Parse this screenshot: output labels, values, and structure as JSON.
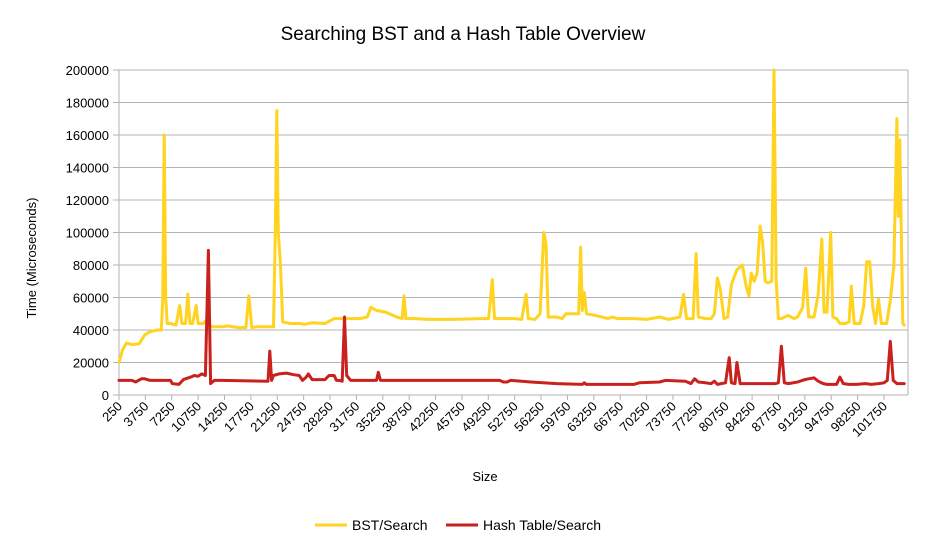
{
  "chart_data": {
    "type": "line",
    "title": "Searching BST and a Hash Table Overview",
    "xlabel": "Size",
    "ylabel": "Time (Microseconds)",
    "ylim": [
      0,
      200000
    ],
    "yticks": [
      0,
      20000,
      40000,
      60000,
      80000,
      100000,
      120000,
      140000,
      160000,
      180000,
      200000
    ],
    "xtick_labels": [
      "250",
      "3750",
      "7250",
      "10750",
      "14250",
      "17750",
      "21250",
      "24750",
      "28250",
      "31750",
      "35250",
      "38750",
      "42250",
      "45750",
      "49250",
      "52750",
      "56250",
      "59750",
      "63250",
      "66750",
      "70250",
      "73750",
      "77250",
      "80750",
      "84250",
      "87750",
      "91250",
      "94750",
      "98250",
      "101750"
    ],
    "xlim": [
      250,
      104250
    ],
    "grid": "horizontal",
    "legend_position": "bottom",
    "series": [
      {
        "name": "BST/Search",
        "color": "#FFD320",
        "points": [
          [
            250,
            20000
          ],
          [
            750,
            28000
          ],
          [
            1250,
            32000
          ],
          [
            2000,
            31000
          ],
          [
            3000,
            31500
          ],
          [
            3750,
            37000
          ],
          [
            4500,
            39000
          ],
          [
            5500,
            40000
          ],
          [
            6000,
            40000
          ],
          [
            6200,
            60000
          ],
          [
            6400,
            160000
          ],
          [
            6600,
            60000
          ],
          [
            6800,
            44000
          ],
          [
            7250,
            44000
          ],
          [
            8000,
            43000
          ],
          [
            8500,
            55000
          ],
          [
            8800,
            44000
          ],
          [
            9300,
            44000
          ],
          [
            9600,
            62000
          ],
          [
            9900,
            44000
          ],
          [
            10250,
            44000
          ],
          [
            10750,
            55000
          ],
          [
            11000,
            44000
          ],
          [
            11700,
            44000
          ],
          [
            12100,
            46000
          ],
          [
            12500,
            43000
          ],
          [
            13000,
            42000
          ],
          [
            14250,
            42000
          ],
          [
            15000,
            42500
          ],
          [
            16500,
            41500
          ],
          [
            17500,
            41500
          ],
          [
            17900,
            61000
          ],
          [
            18300,
            41500
          ],
          [
            19000,
            42000
          ],
          [
            21250,
            42000
          ],
          [
            21500,
            100000
          ],
          [
            21700,
            175000
          ],
          [
            21900,
            100000
          ],
          [
            22200,
            80000
          ],
          [
            22500,
            45000
          ],
          [
            23500,
            44000
          ],
          [
            24750,
            44000
          ],
          [
            25500,
            43500
          ],
          [
            26500,
            44500
          ],
          [
            28250,
            44000
          ],
          [
            29500,
            47000
          ],
          [
            30500,
            47000
          ],
          [
            31750,
            47000
          ],
          [
            33000,
            47000
          ],
          [
            34000,
            48000
          ],
          [
            34500,
            54000
          ],
          [
            35250,
            52000
          ],
          [
            36500,
            51000
          ],
          [
            38000,
            48000
          ],
          [
            38750,
            47000
          ],
          [
            39000,
            61000
          ],
          [
            39250,
            47000
          ],
          [
            40500,
            47000
          ],
          [
            42250,
            46500
          ],
          [
            45750,
            46500
          ],
          [
            49250,
            47000
          ],
          [
            50500,
            47000
          ],
          [
            51000,
            71000
          ],
          [
            51300,
            47000
          ],
          [
            52750,
            47000
          ],
          [
            54000,
            47000
          ],
          [
            55000,
            46500
          ],
          [
            55600,
            62000
          ],
          [
            55900,
            47000
          ],
          [
            56800,
            46500
          ],
          [
            57500,
            50000
          ],
          [
            58000,
            100000
          ],
          [
            58300,
            93000
          ],
          [
            58600,
            48000
          ],
          [
            59750,
            48000
          ],
          [
            60500,
            47000
          ],
          [
            61000,
            50000
          ],
          [
            62000,
            50000
          ],
          [
            62750,
            50000
          ],
          [
            63000,
            91000
          ],
          [
            63250,
            52000
          ],
          [
            63500,
            63000
          ],
          [
            63800,
            50000
          ],
          [
            65000,
            49000
          ],
          [
            66750,
            47000
          ],
          [
            67300,
            48000
          ],
          [
            68000,
            47000
          ],
          [
            70250,
            47000
          ],
          [
            72000,
            46500
          ],
          [
            73750,
            48000
          ],
          [
            75000,
            46500
          ],
          [
            76500,
            48000
          ],
          [
            77000,
            62000
          ],
          [
            77400,
            47000
          ],
          [
            78300,
            47000
          ],
          [
            78700,
            87000
          ],
          [
            79000,
            48000
          ],
          [
            80000,
            47000
          ],
          [
            80750,
            47000
          ],
          [
            81200,
            50000
          ],
          [
            81600,
            72000
          ],
          [
            82000,
            65000
          ],
          [
            82500,
            47000
          ],
          [
            83000,
            48000
          ],
          [
            83500,
            68000
          ],
          [
            84250,
            77000
          ],
          [
            85000,
            80000
          ],
          [
            85500,
            67000
          ],
          [
            85900,
            61000
          ],
          [
            86200,
            75000
          ],
          [
            86600,
            70000
          ],
          [
            87000,
            75000
          ],
          [
            87400,
            104000
          ],
          [
            87750,
            94000
          ],
          [
            88100,
            70000
          ],
          [
            88500,
            69000
          ],
          [
            89000,
            70000
          ],
          [
            89300,
            200000
          ],
          [
            89600,
            70000
          ],
          [
            89900,
            47000
          ],
          [
            90300,
            47000
          ],
          [
            91250,
            49000
          ],
          [
            92000,
            47000
          ],
          [
            92500,
            48000
          ],
          [
            93200,
            54000
          ],
          [
            93600,
            78000
          ],
          [
            94000,
            48000
          ],
          [
            94750,
            48000
          ],
          [
            95300,
            62000
          ],
          [
            95800,
            96000
          ],
          [
            96100,
            51000
          ],
          [
            96500,
            51000
          ],
          [
            97000,
            100000
          ],
          [
            97300,
            48000
          ],
          [
            97800,
            47000
          ],
          [
            98250,
            44000
          ],
          [
            99000,
            44000
          ],
          [
            99500,
            45000
          ],
          [
            99800,
            67000
          ],
          [
            100200,
            44000
          ],
          [
            101000,
            44000
          ],
          [
            101500,
            55000
          ],
          [
            101900,
            82000
          ],
          [
            102300,
            82000
          ],
          [
            102700,
            55000
          ],
          [
            103100,
            44000
          ],
          [
            103500,
            59000
          ],
          [
            103900,
            44000
          ],
          [
            104250,
            44000
          ],
          [
            104600,
            44000
          ],
          [
            105100,
            58000
          ],
          [
            105600,
            80000
          ],
          [
            106000,
            170000
          ],
          [
            106200,
            110000
          ],
          [
            106400,
            157000
          ],
          [
            106600,
            100000
          ],
          [
            106800,
            44000
          ],
          [
            107000,
            43000
          ]
        ]
      },
      {
        "name": "Hash Table/Search",
        "color": "#C9211E",
        "points": [
          [
            250,
            9000
          ],
          [
            2000,
            9000
          ],
          [
            2500,
            8000
          ],
          [
            3300,
            10000
          ],
          [
            3750,
            10000
          ],
          [
            4500,
            9000
          ],
          [
            7250,
            9000
          ],
          [
            7500,
            7000
          ],
          [
            8400,
            6500
          ],
          [
            9000,
            9500
          ],
          [
            10000,
            11000
          ],
          [
            10500,
            12000
          ],
          [
            11000,
            11500
          ],
          [
            11500,
            13000
          ],
          [
            12000,
            12000
          ],
          [
            12400,
            89000
          ],
          [
            12700,
            7000
          ],
          [
            13200,
            9000
          ],
          [
            14250,
            9000
          ],
          [
            20500,
            8500
          ],
          [
            20750,
            27000
          ],
          [
            21000,
            9000
          ],
          [
            21250,
            12000
          ],
          [
            22000,
            13000
          ],
          [
            23000,
            13500
          ],
          [
            24000,
            12500
          ],
          [
            24750,
            12000
          ],
          [
            25200,
            9000
          ],
          [
            25700,
            11000
          ],
          [
            26000,
            13000
          ],
          [
            26500,
            9500
          ],
          [
            28250,
            9500
          ],
          [
            28800,
            12000
          ],
          [
            29500,
            12000
          ],
          [
            29800,
            9000
          ],
          [
            30200,
            9000
          ],
          [
            30600,
            8500
          ],
          [
            30900,
            48000
          ],
          [
            31200,
            12000
          ],
          [
            31750,
            9000
          ],
          [
            35250,
            9000
          ],
          [
            35500,
            14000
          ],
          [
            35800,
            9000
          ],
          [
            38750,
            9000
          ],
          [
            52000,
            9000
          ],
          [
            52500,
            8000
          ],
          [
            53000,
            8000
          ],
          [
            53500,
            9000
          ],
          [
            56250,
            8000
          ],
          [
            59750,
            7000
          ],
          [
            63250,
            6500
          ],
          [
            63500,
            7500
          ],
          [
            63750,
            6500
          ],
          [
            66750,
            6500
          ],
          [
            70250,
            6500
          ],
          [
            71000,
            7500
          ],
          [
            73750,
            8000
          ],
          [
            74500,
            9000
          ],
          [
            77250,
            8500
          ],
          [
            78000,
            7000
          ],
          [
            78500,
            10000
          ],
          [
            79000,
            8000
          ],
          [
            80000,
            7500
          ],
          [
            80750,
            7000
          ],
          [
            81200,
            8500
          ],
          [
            81600,
            6500
          ],
          [
            82100,
            7000
          ],
          [
            82700,
            7500
          ],
          [
            83200,
            23000
          ],
          [
            83500,
            7500
          ],
          [
            84000,
            7000
          ],
          [
            84250,
            20000
          ],
          [
            84700,
            7000
          ],
          [
            85500,
            7000
          ],
          [
            86500,
            7000
          ],
          [
            87500,
            7000
          ],
          [
            88500,
            7000
          ],
          [
            89500,
            7000
          ],
          [
            89900,
            7500
          ],
          [
            90300,
            30000
          ],
          [
            90700,
            7500
          ],
          [
            91250,
            7000
          ],
          [
            92500,
            8000
          ],
          [
            93500,
            9500
          ],
          [
            94000,
            10000
          ],
          [
            94750,
            10500
          ],
          [
            95300,
            8500
          ],
          [
            96000,
            7000
          ],
          [
            96500,
            6500
          ],
          [
            97800,
            6500
          ],
          [
            98250,
            11000
          ],
          [
            98700,
            7000
          ],
          [
            99500,
            6500
          ],
          [
            100500,
            6500
          ],
          [
            101750,
            7000
          ],
          [
            102500,
            6500
          ],
          [
            103500,
            7000
          ],
          [
            104250,
            7500
          ],
          [
            104700,
            9000
          ],
          [
            105100,
            33000
          ],
          [
            105500,
            9000
          ],
          [
            106000,
            7000
          ],
          [
            107000,
            7000
          ]
        ]
      }
    ]
  }
}
